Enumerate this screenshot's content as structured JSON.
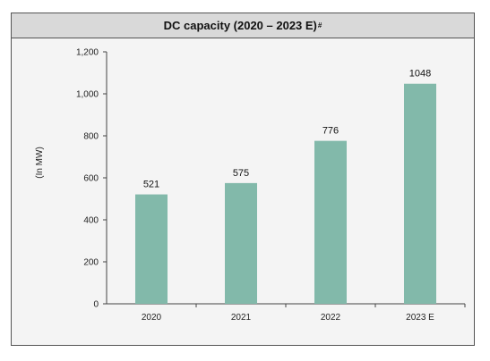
{
  "chart_data": {
    "type": "bar",
    "title": "DC capacity (2020 – 2023 E)",
    "title_superscript": "#",
    "ylabel": "(In MW)",
    "xlabel": "",
    "categories": [
      "2020",
      "2021",
      "2022",
      "2023 E"
    ],
    "values": [
      521,
      575,
      776,
      1048
    ],
    "data_labels": [
      "521",
      "575",
      "776",
      "1048"
    ],
    "ylim": [
      0,
      1200
    ],
    "yticks": [
      "0",
      "200",
      "400",
      "600",
      "800",
      "1,000",
      "1,200"
    ],
    "ytick_values": [
      0,
      200,
      400,
      600,
      800,
      1000,
      1200
    ],
    "grid": false,
    "legend": "none",
    "bar_color": "#82b9aa"
  }
}
